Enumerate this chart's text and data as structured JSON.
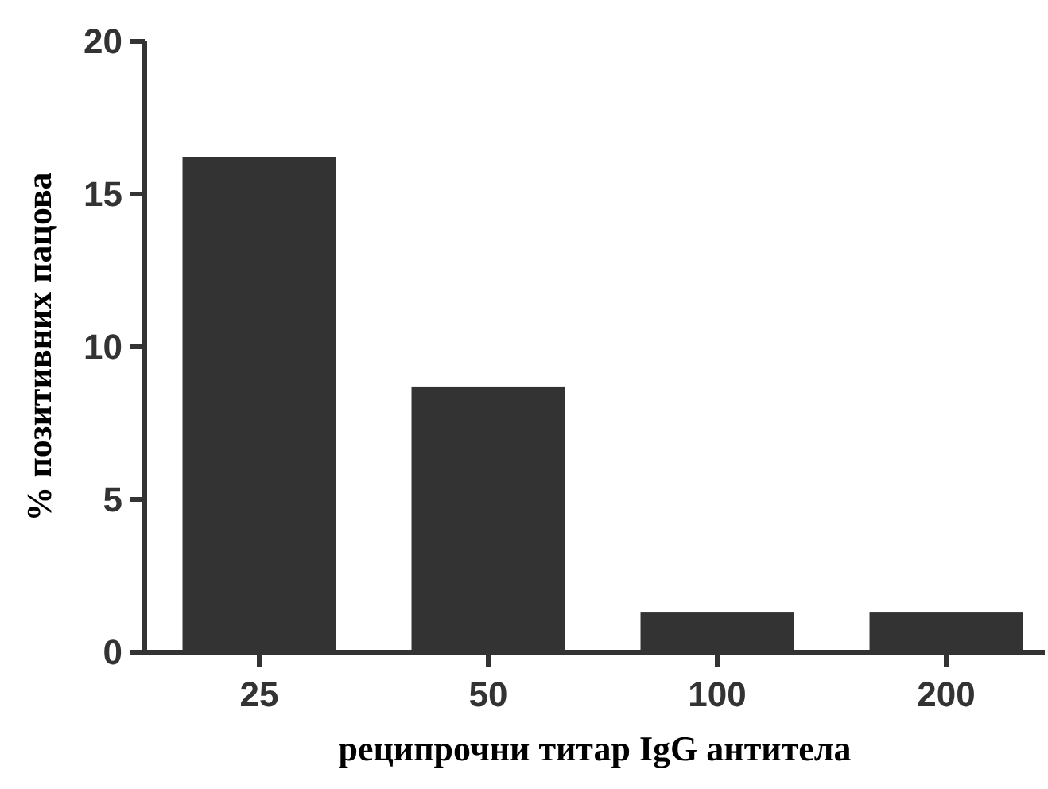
{
  "chart_data": {
    "type": "bar",
    "xlabel": "реципрочни титар IgG антитела",
    "ylabel": "% позитивних пацова",
    "categories": [
      "25",
      "50",
      "100",
      "200"
    ],
    "values": [
      16.2,
      8.7,
      1.3,
      1.3
    ],
    "color": "#333333",
    "ylim": [
      0,
      20
    ],
    "yticks": [
      0,
      5,
      10,
      15,
      20
    ],
    "grid": false
  }
}
